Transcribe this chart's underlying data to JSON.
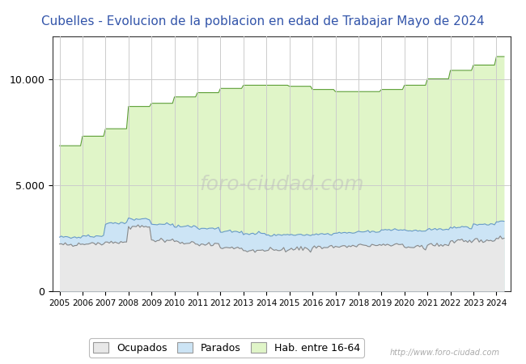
{
  "title": "Cubelles - Evolucion de la poblacion en edad de Trabajar Mayo de 2024",
  "title_color": "#3355aa",
  "title_fontsize": 11,
  "ylabel": "",
  "years_annual": [
    2005,
    2006,
    2007,
    2008,
    2009,
    2010,
    2011,
    2012,
    2013,
    2014,
    2015,
    2016,
    2017,
    2018,
    2019,
    2020,
    2021,
    2022,
    2023,
    2024
  ],
  "hab_16_64_annual": [
    6850,
    7300,
    7650,
    8700,
    8850,
    9150,
    9350,
    9550,
    9700,
    9700,
    9650,
    9500,
    9400,
    9400,
    9500,
    9700,
    10000,
    10400,
    10650,
    11050
  ],
  "ocupados_annual": [
    2200,
    2250,
    2300,
    3050,
    2400,
    2300,
    2200,
    2050,
    1900,
    1950,
    2000,
    2050,
    2100,
    2150,
    2200,
    2050,
    2200,
    2350,
    2400,
    2500
  ],
  "parados_annual": [
    2550,
    2600,
    3200,
    3400,
    3150,
    3050,
    2950,
    2800,
    2700,
    2650,
    2650,
    2700,
    2750,
    2800,
    2900,
    2850,
    2900,
    3000,
    3150,
    3300
  ],
  "hab_color_fill": "#e0f5c8",
  "hab_color_line": "#5a9e32",
  "ocupados_color_fill": "#e8e8e8",
  "ocupados_color_line": "#888888",
  "parados_color_fill": "#cce4f5",
  "parados_color_line": "#6699cc",
  "ylim": [
    0,
    12000
  ],
  "yticks": [
    0,
    5000,
    10000
  ],
  "ytick_labels": [
    "0",
    "5.000",
    "10.000"
  ],
  "xtick_years": [
    2005,
    2006,
    2007,
    2008,
    2009,
    2010,
    2011,
    2012,
    2013,
    2014,
    2015,
    2016,
    2017,
    2018,
    2019,
    2020,
    2021,
    2022,
    2023,
    2024
  ],
  "watermark_text": "http://www.foro-ciudad.com",
  "watermark_big": "foro-ciudad.com",
  "background_color": "#ffffff",
  "grid_color": "#cccccc"
}
